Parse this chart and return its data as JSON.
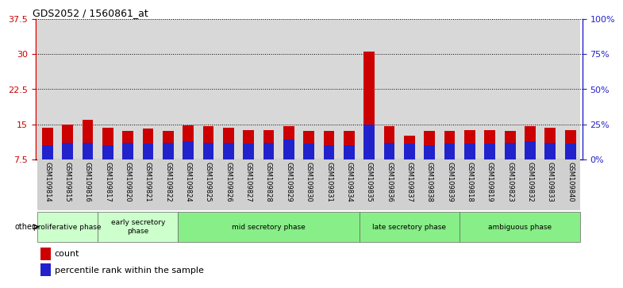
{
  "title": "GDS2052 / 1560861_at",
  "samples": [
    "GSM109814",
    "GSM109815",
    "GSM109816",
    "GSM109817",
    "GSM109820",
    "GSM109821",
    "GSM109822",
    "GSM109824",
    "GSM109825",
    "GSM109826",
    "GSM109827",
    "GSM109828",
    "GSM109829",
    "GSM109830",
    "GSM109831",
    "GSM109834",
    "GSM109835",
    "GSM109836",
    "GSM109837",
    "GSM109838",
    "GSM109839",
    "GSM109818",
    "GSM109819",
    "GSM109823",
    "GSM109832",
    "GSM109833",
    "GSM109840"
  ],
  "count_values": [
    14.2,
    15.0,
    16.0,
    14.2,
    13.5,
    14.0,
    13.5,
    14.8,
    14.5,
    14.2,
    13.7,
    13.7,
    14.5,
    13.5,
    13.5,
    13.5,
    30.5,
    14.5,
    12.5,
    13.5,
    13.5,
    13.7,
    13.7,
    13.5,
    14.5,
    14.2,
    13.7
  ],
  "pct_values": [
    10,
    12,
    12,
    10,
    12,
    11,
    12,
    13,
    12,
    12,
    11,
    12,
    14,
    11,
    10,
    10,
    25,
    12,
    11,
    10,
    11,
    11,
    11,
    12,
    13,
    12,
    11
  ],
  "ylim_left": [
    7.5,
    37.5
  ],
  "yticks_left": [
    7.5,
    15.0,
    22.5,
    30.0,
    37.5
  ],
  "ylim_right": [
    0,
    100
  ],
  "yticks_right": [
    0,
    25,
    50,
    75,
    100
  ],
  "bar_color_count": "#cc0000",
  "bar_color_pct": "#2222cc",
  "bar_width": 0.55,
  "phase_labels": [
    "proliferative phase",
    "early secretory\nphase",
    "mid secretory phase",
    "late secretory phase",
    "ambiguous phase"
  ],
  "phase_starts": [
    0,
    3,
    7,
    16,
    21
  ],
  "phase_ends": [
    3,
    7,
    16,
    21,
    27
  ],
  "phase_colors": [
    "#ccffcc",
    "#ccffcc",
    "#88ee88",
    "#88ee88",
    "#88ee88"
  ],
  "left_axis_color": "#cc0000",
  "right_axis_color": "#2222cc",
  "grid_color": "#000000"
}
